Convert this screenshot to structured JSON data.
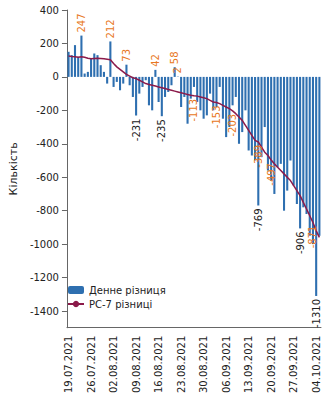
{
  "chart_data": {
    "type": "bar",
    "y_label": "Кількість",
    "categories": [
      "19.07.2021",
      null,
      null,
      null,
      null,
      null,
      null,
      "26.07.2021",
      null,
      null,
      null,
      null,
      null,
      null,
      "02.08.2021",
      null,
      null,
      null,
      null,
      null,
      null,
      "09.08.2021",
      null,
      null,
      null,
      null,
      null,
      null,
      "16.08.2021",
      null,
      null,
      null,
      null,
      null,
      null,
      "23.08.2021",
      null,
      null,
      null,
      null,
      null,
      null,
      "30.08.2021",
      null,
      null,
      null,
      null,
      null,
      null,
      "06.09.2021",
      null,
      null,
      null,
      null,
      null,
      null,
      "13.09.2021",
      null,
      null,
      null,
      null,
      null,
      null,
      "20.09.2021",
      null,
      null,
      null,
      null,
      null,
      null,
      "27.09.2021",
      null,
      null,
      null,
      null,
      null,
      null,
      "04.10.2021",
      null
    ],
    "series": [
      {
        "name": "Денне різниця",
        "type": "bar",
        "color": "#2e6fb0",
        "values": [
          150,
          130,
          190,
          120,
          247,
          20,
          30,
          110,
          140,
          130,
          70,
          30,
          -40,
          212,
          -60,
          -30,
          -80,
          -40,
          73,
          -50,
          -120,
          -231,
          -100,
          -60,
          -20,
          -170,
          -200,
          42,
          -150,
          -235,
          -120,
          -90,
          -50,
          58,
          2,
          -180,
          -120,
          -280,
          -130,
          -60,
          -150,
          -200,
          -250,
          -230,
          -100,
          -200,
          -180,
          -60,
          -250,
          -360,
          -300,
          -170,
          -120,
          -400,
          -330,
          -200,
          -440,
          -470,
          -500,
          -769,
          -480,
          -300,
          -560,
          -620,
          -700,
          -540,
          -520,
          -800,
          -680,
          -500,
          -650,
          -760,
          -906,
          -780,
          -820,
          -950,
          -1000,
          -1310,
          -950
        ],
        "value_labels": [
          null,
          null,
          null,
          null,
          "247",
          null,
          null,
          null,
          null,
          null,
          null,
          null,
          null,
          "212",
          null,
          null,
          null,
          null,
          "73",
          null,
          null,
          "-231",
          null,
          null,
          null,
          null,
          null,
          "42",
          null,
          "-235",
          null,
          null,
          null,
          "58",
          "2",
          null,
          null,
          null,
          null,
          null,
          null,
          null,
          null,
          null,
          null,
          null,
          null,
          null,
          null,
          null,
          null,
          null,
          null,
          null,
          null,
          null,
          null,
          null,
          null,
          "-769",
          null,
          null,
          null,
          null,
          null,
          null,
          null,
          null,
          null,
          null,
          null,
          null,
          "-906",
          null,
          null,
          null,
          null,
          "-1310",
          null
        ]
      },
      {
        "name": "РС-7 різниці",
        "type": "line",
        "color": "#8b1a4a",
        "values": [
          125,
          122,
          120,
          118,
          120,
          118,
          112,
          108,
          110,
          112,
          110,
          108,
          105,
          102,
          80,
          60,
          45,
          30,
          15,
          5,
          -5,
          -10,
          -20,
          -30,
          -40,
          -45,
          -50,
          -55,
          -60,
          -65,
          -70,
          -75,
          -80,
          -85,
          -90,
          -95,
          -100,
          -105,
          -110,
          -113,
          -115,
          -120,
          -125,
          -130,
          -140,
          -150,
          -153,
          -160,
          -170,
          -180,
          -190,
          -203,
          -220,
          -240,
          -260,
          -290,
          -320,
          -350,
          -380,
          -389,
          -420,
          -450,
          -470,
          -497,
          -520,
          -540,
          -560,
          -580,
          -600,
          -620,
          -650,
          -680,
          -710,
          -750,
          -790,
          -830,
          -871,
          -920,
          -960
        ],
        "value_labels": [
          null,
          null,
          null,
          null,
          null,
          null,
          null,
          null,
          null,
          null,
          null,
          null,
          null,
          null,
          null,
          null,
          null,
          null,
          null,
          null,
          null,
          null,
          null,
          null,
          null,
          null,
          null,
          null,
          null,
          null,
          null,
          null,
          null,
          null,
          null,
          null,
          null,
          null,
          null,
          "-113",
          null,
          null,
          null,
          null,
          null,
          null,
          "-153",
          null,
          null,
          null,
          null,
          "-203",
          null,
          null,
          null,
          null,
          null,
          null,
          null,
          "-389",
          null,
          null,
          null,
          "-497",
          null,
          null,
          null,
          null,
          null,
          null,
          null,
          null,
          null,
          null,
          null,
          null,
          "-871",
          null,
          null
        ]
      }
    ],
    "ylim": [
      -1500,
      400
    ],
    "yticks": [
      -1400,
      -1200,
      -1000,
      -800,
      -600,
      -400,
      -200,
      0,
      200,
      400
    ],
    "grid": false,
    "legend": "lower left"
  }
}
